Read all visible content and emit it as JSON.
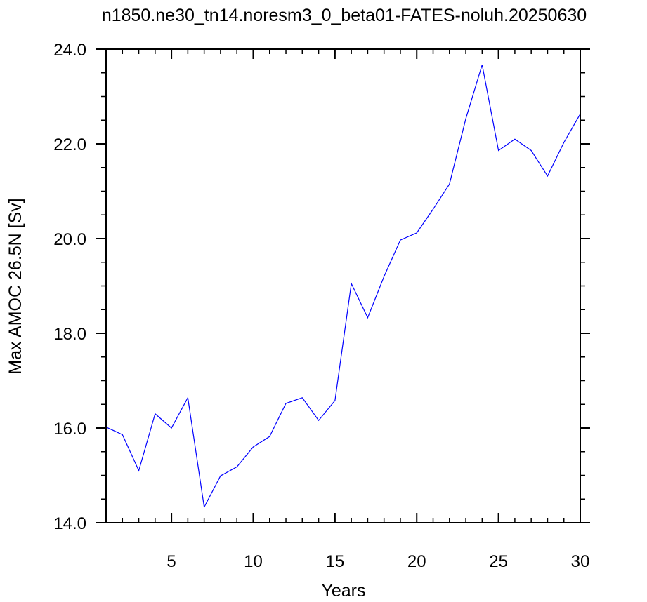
{
  "chart_data": {
    "type": "line",
    "title": "n1850.ne30_tn14.noresm3_0_beta01-FATES-noluh.20250630",
    "xlabel": "Years",
    "ylabel": "Max AMOC 26.5N [Sv]",
    "xlim": [
      1,
      30
    ],
    "ylim": [
      14.0,
      24.0
    ],
    "x_ticks": [
      5,
      10,
      15,
      20,
      25,
      30
    ],
    "x_tick_labels": [
      "5",
      "10",
      "15",
      "20",
      "25",
      "30"
    ],
    "y_ticks": [
      14.0,
      16.0,
      18.0,
      20.0,
      22.0,
      24.0
    ],
    "y_tick_labels": [
      "14.0",
      "16.0",
      "18.0",
      "20.0",
      "22.0",
      "24.0"
    ],
    "grid": false,
    "line_color": "#0000ff",
    "series": [
      {
        "x": [
          1,
          2,
          3,
          4,
          5,
          6,
          7,
          8,
          9,
          10,
          11,
          12,
          13,
          14,
          15,
          16,
          17,
          18,
          19,
          20,
          21,
          22,
          23,
          24,
          25,
          26,
          27,
          28,
          29,
          30
        ],
        "values": [
          16.02,
          15.86,
          15.1,
          16.3,
          16.0,
          16.64,
          14.33,
          14.99,
          15.18,
          15.6,
          15.82,
          16.52,
          16.64,
          16.16,
          16.58,
          19.05,
          18.33,
          19.2,
          19.97,
          20.12,
          20.62,
          21.15,
          22.53,
          23.67,
          21.86,
          22.1,
          21.86,
          21.32,
          22.03,
          22.63
        ]
      }
    ]
  }
}
